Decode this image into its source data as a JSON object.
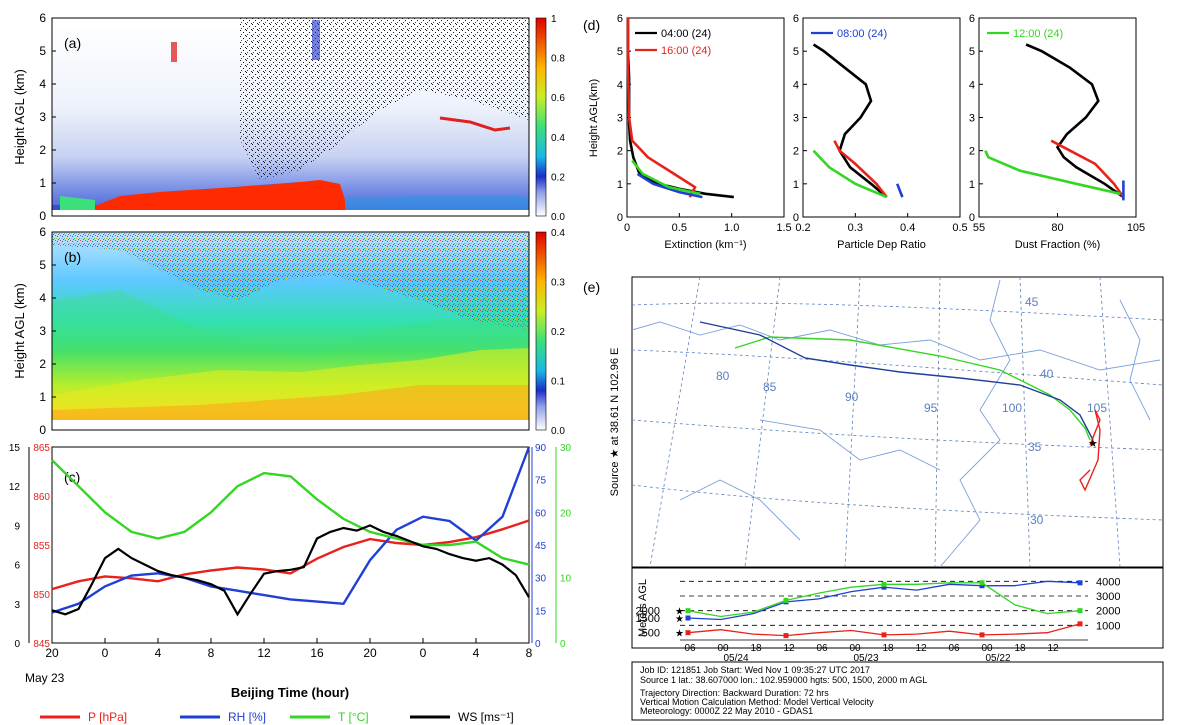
{
  "chart_data": [
    {
      "panel": "(a)",
      "type": "heatmap",
      "ylabel": "Height AGL (km)",
      "y_ticks": [
        "0",
        "1",
        "2",
        "3",
        "4",
        "5",
        "6"
      ],
      "ylim": [
        0,
        6
      ],
      "colorbar_ticks": [
        "0.0",
        "0.2",
        "0.4",
        "0.6",
        "0.8",
        "1"
      ],
      "colorbar_range": [
        0,
        1
      ]
    },
    {
      "panel": "(b)",
      "type": "heatmap",
      "ylabel": "Height AGL (km)",
      "y_ticks": [
        "0",
        "1",
        "2",
        "3",
        "4",
        "5",
        "6"
      ],
      "ylim": [
        0,
        6
      ],
      "colorbar_ticks": [
        "0.0",
        "0.1",
        "0.2",
        "0.3",
        "0.4"
      ],
      "colorbar_range": [
        0,
        0.4
      ]
    },
    {
      "panel": "(c)",
      "type": "line",
      "xlabel": "Beijing Time (hour)",
      "x_ticks": [
        "20",
        "0",
        "4",
        "8",
        "12",
        "16",
        "20",
        "0",
        "4",
        "8"
      ],
      "x_date_label": "May 23",
      "x_hours": [
        0,
        36
      ],
      "axes": {
        "ws": {
          "ticks": [
            "0",
            "3",
            "6",
            "9",
            "12",
            "15"
          ],
          "range": [
            0,
            15
          ]
        },
        "p": {
          "ticks": [
            "845",
            "850",
            "855",
            "860",
            "865"
          ],
          "range": [
            845,
            865
          ]
        },
        "rh": {
          "ticks": [
            "0",
            "15",
            "30",
            "45",
            "60",
            "75",
            "90"
          ],
          "range": [
            0,
            90
          ]
        },
        "t": {
          "ticks": [
            "0",
            "10",
            "20",
            "30"
          ],
          "range": [
            0,
            30
          ]
        }
      },
      "series": [
        {
          "name": "P [hPa]",
          "color": "#e8221b",
          "axis": "p",
          "x": [
            0,
            2,
            4,
            6,
            8,
            10,
            12,
            14,
            16,
            18,
            20,
            22,
            24,
            26,
            28,
            30,
            32,
            34,
            36
          ],
          "values": [
            850.5,
            851.3,
            851.8,
            851.6,
            851.3,
            852.0,
            852.4,
            852.7,
            852.5,
            852.1,
            853.6,
            854.8,
            855.6,
            855.2,
            855.0,
            855.3,
            855.8,
            856.6,
            857.5
          ]
        },
        {
          "name": "RH [%]",
          "color": "#1f3fd6",
          "axis": "rh",
          "x": [
            0,
            2,
            4,
            6,
            8,
            10,
            12,
            14,
            16,
            18,
            20,
            22,
            24,
            26,
            28,
            30,
            32,
            34,
            36
          ],
          "values": [
            14,
            18,
            26,
            31,
            32,
            30,
            26,
            24,
            22,
            20,
            19,
            18,
            38,
            52,
            58,
            56,
            47,
            58,
            90
          ]
        },
        {
          "name": "T [°C]",
          "color": "#33d622",
          "axis": "t",
          "x": [
            0,
            2,
            4,
            6,
            8,
            10,
            12,
            14,
            16,
            18,
            20,
            22,
            24,
            26,
            28,
            30,
            32,
            34,
            36
          ],
          "values": [
            28,
            24,
            20,
            17,
            16,
            17,
            20,
            24,
            26,
            25.5,
            22,
            19,
            17,
            16,
            15,
            15,
            15.5,
            13,
            12
          ]
        },
        {
          "name": "WS [ms⁻¹]",
          "color": "#000000",
          "axis": "ws",
          "x": [
            0,
            1,
            2,
            3,
            4,
            5,
            6,
            7,
            8,
            9,
            10,
            11,
            12,
            13,
            14,
            15,
            16,
            17,
            18,
            19,
            20,
            21,
            22,
            23,
            24,
            25,
            26,
            27,
            28,
            29,
            30,
            31,
            32,
            33,
            34,
            35,
            36
          ],
          "values": [
            2.5,
            2.2,
            2.6,
            4.5,
            6.5,
            7.2,
            6.5,
            6.0,
            5.5,
            5.2,
            5.0,
            4.8,
            4.5,
            4.0,
            2.2,
            3.8,
            5.3,
            5.5,
            5.6,
            5.8,
            8.0,
            8.5,
            8.8,
            8.6,
            9.0,
            8.5,
            8.2,
            7.8,
            7.4,
            7.2,
            6.8,
            6.5,
            6.3,
            6.5,
            6.0,
            5.2,
            3.5
          ]
        }
      ]
    },
    {
      "panel": "(d)",
      "type": "line",
      "ylabel": "Height AGL(km)",
      "y_ticks": [
        "0",
        "1",
        "2",
        "3",
        "4",
        "5",
        "6"
      ],
      "subplots": [
        {
          "xlabel": "Extinction (km⁻¹)",
          "x_ticks": [
            "0",
            "0.5",
            "1.0",
            "1.5"
          ],
          "xlim": [
            0,
            1.5
          ],
          "legend": [
            "04:00 (24)",
            "16:00 (24)"
          ],
          "series": [
            {
              "name": "04:00 (24)",
              "color": "#000000",
              "x": [
                1.02,
                0.75,
                0.5,
                0.3,
                0.12,
                0.06,
                0.03,
                0.02,
                0.02,
                0.02,
                0.01,
                0.01
              ],
              "y": [
                0.6,
                0.7,
                0.85,
                1.0,
                1.3,
                1.8,
                2.3,
                2.8,
                3.5,
                4.2,
                5.0,
                6.0
              ]
            },
            {
              "name": "16:00 (24)",
              "color": "#e8221b",
              "x": [
                0.6,
                0.65,
                0.45,
                0.2,
                0.05,
                0.02,
                0.01,
                0.01
              ],
              "y": [
                0.6,
                0.9,
                1.3,
                1.8,
                2.3,
                3.0,
                4.5,
                6.0
              ]
            },
            {
              "name": "08:00 (24)",
              "color": "#1f3fd6",
              "x": [
                0.72,
                0.5,
                0.25,
                0.1
              ],
              "y": [
                0.6,
                0.75,
                1.0,
                1.3
              ]
            },
            {
              "name": "12:00 (24)",
              "color": "#33d622",
              "x": [
                0.7,
                0.4,
                0.15,
                0.05
              ],
              "y": [
                0.7,
                0.9,
                1.3,
                1.7
              ]
            }
          ]
        },
        {
          "xlabel": "Particle Dep Ratio",
          "x_ticks": [
            "0.2",
            "0.3",
            "0.4",
            "0.5"
          ],
          "xlim": [
            0.2,
            0.5
          ],
          "legend": [
            "08:00 (24)"
          ],
          "series": [
            {
              "name": "04:00 (24)",
              "color": "#000000",
              "x": [
                0.36,
                0.33,
                0.29,
                0.27,
                0.28,
                0.31,
                0.33,
                0.32,
                0.28,
                0.24,
                0.22
              ],
              "y": [
                0.6,
                1.0,
                1.5,
                2.0,
                2.5,
                3.0,
                3.5,
                4.0,
                4.5,
                5.0,
                5.2
              ]
            },
            {
              "name": "16:00 (24)",
              "color": "#e8221b",
              "x": [
                0.36,
                0.34,
                0.3,
                0.27,
                0.26
              ],
              "y": [
                0.6,
                1.0,
                1.6,
                2.0,
                2.3
              ]
            },
            {
              "name": "08:00 (24)",
              "color": "#1f3fd6",
              "x": [
                0.39,
                0.38
              ],
              "y": [
                0.6,
                1.0
              ]
            },
            {
              "name": "12:00 (24)",
              "color": "#33d622",
              "x": [
                0.36,
                0.3,
                0.25,
                0.22
              ],
              "y": [
                0.6,
                1.0,
                1.5,
                2.0
              ]
            }
          ]
        },
        {
          "xlabel": "Dust Fraction (%)",
          "x_ticks": [
            "55",
            "80",
            "105"
          ],
          "xlim": [
            55,
            105
          ],
          "legend": [
            "12:00 (24)"
          ],
          "series": [
            {
              "name": "04:00 (24)",
              "color": "#000000",
              "x": [
                101,
                95,
                86,
                82,
                80,
                83,
                89,
                93,
                91,
                84,
                75,
                70
              ],
              "y": [
                0.6,
                1.0,
                1.5,
                1.8,
                2.1,
                2.5,
                3.0,
                3.5,
                4.0,
                4.5,
                5.0,
                5.2
              ]
            },
            {
              "name": "16:00 (24)",
              "color": "#e8221b",
              "x": [
                101,
                98,
                92,
                84,
                78
              ],
              "y": [
                0.6,
                1.0,
                1.6,
                2.0,
                2.3
              ]
            },
            {
              "name": "08:00 (24)",
              "color": "#1f3fd6",
              "x": [
                101,
                101
              ],
              "y": [
                0.5,
                1.1
              ]
            },
            {
              "name": "12:00 (24)",
              "color": "#33d622",
              "x": [
                100,
                86,
                68,
                58,
                57
              ],
              "y": [
                0.7,
                1.0,
                1.4,
                1.8,
                2.0
              ]
            }
          ]
        }
      ]
    },
    {
      "panel": "(e)",
      "type": "line",
      "source_label": "Source ★ at  38.61 N  102.96 E",
      "map_labels": {
        "lat": [
          "45",
          "40",
          "35",
          "30"
        ],
        "lon": [
          "80",
          "85",
          "90",
          "95",
          "100",
          "105"
        ]
      },
      "vertical_ylabel": "Meters AGL",
      "vertical_right_ticks": [
        "4000",
        "3000",
        "2000",
        "1000"
      ],
      "vertical_left_ticks": [
        "2000",
        "1500",
        "500"
      ],
      "time_ticks": [
        "06",
        "00",
        "18",
        "12",
        "06",
        "00",
        "18",
        "12",
        "06",
        "00",
        "18",
        "12"
      ],
      "date_ticks": [
        "05/24",
        "05/23",
        "05/22"
      ],
      "info": [
        "Job ID: 121851                        Job Start: Wed Nov  1 09:35:27 UTC 2017",
        "Source 1 lat.: 38.607000  lon.: 102.959000  hgts: 500, 1500, 2000 m AGL",
        "Trajectory Direction: Backward      Duration: 72 hrs",
        "Vertical Motion Calculation Method:       Model Vertical Velocity",
        "Meteorology: 0000Z 22 May 2010 - GDAS1"
      ],
      "series": [
        {
          "name": "500 m",
          "color": "#e8221b",
          "height_m": [
            500,
            700,
            400,
            300,
            500,
            650,
            350,
            400,
            600,
            350,
            400,
            500,
            1100
          ]
        },
        {
          "name": "1500 m",
          "color": "#1f3fd6",
          "height_m": [
            1500,
            1400,
            1800,
            2600,
            2800,
            3300,
            3600,
            3400,
            3800,
            3700,
            3700,
            4000,
            3900
          ]
        },
        {
          "name": "2000 m",
          "color": "#33d622",
          "height_m": [
            2000,
            1600,
            1900,
            2700,
            3200,
            3600,
            3800,
            3800,
            3900,
            3900,
            2400,
            1800,
            2000
          ]
        }
      ]
    }
  ],
  "legend": [
    "P [hPa]",
    "RH [%]",
    "T [°C]",
    "WS [ms⁻¹]"
  ],
  "panel_labels": [
    "(a)",
    "(b)",
    "(c)",
    "(d)",
    "(e)"
  ]
}
